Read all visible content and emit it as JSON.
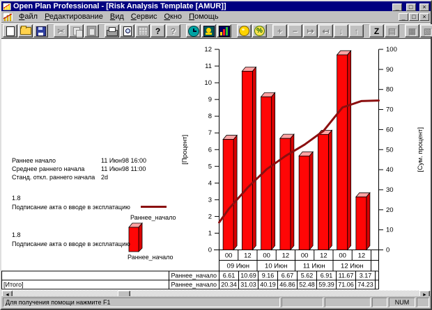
{
  "window": {
    "title": "Open Plan Professional - [Risk Analysis Template [AMUR]]",
    "controls": {
      "minimize": "_",
      "restore": "□",
      "close": "×"
    }
  },
  "menu": {
    "items": [
      "Файл",
      "Редактирование",
      "Вид",
      "Сервис",
      "Окно",
      "Помощь"
    ]
  },
  "toolbar": {
    "buttons": [
      {
        "name": "new-document",
        "group": 0,
        "icon": "page",
        "glyph": "",
        "enabled": true
      },
      {
        "name": "open-document",
        "group": 0,
        "icon": "folder",
        "glyph": "",
        "enabled": true
      },
      {
        "name": "save-document",
        "group": 0,
        "icon": "floppy",
        "glyph": "",
        "enabled": true
      },
      {
        "name": "cut",
        "group": 1,
        "icon": "",
        "glyph": "✂",
        "enabled": false
      },
      {
        "name": "copy",
        "group": 1,
        "icon": "copy",
        "glyph": "",
        "enabled": false
      },
      {
        "name": "paste",
        "group": 1,
        "icon": "paste",
        "glyph": "",
        "enabled": false
      },
      {
        "name": "print",
        "group": 2,
        "icon": "print",
        "glyph": "",
        "enabled": true
      },
      {
        "name": "print-preview",
        "group": 2,
        "icon": "preview",
        "glyph": "",
        "enabled": true
      },
      {
        "name": "import-update",
        "group": 2,
        "icon": "gridup",
        "glyph": "",
        "enabled": false
      },
      {
        "name": "help",
        "group": 2,
        "icon": "",
        "glyph": "?",
        "enabled": true
      },
      {
        "name": "context-help",
        "group": 2,
        "icon": "",
        "glyph": "?",
        "enabled": false
      },
      {
        "name": "time-analysis",
        "group": 3,
        "icon": "clock",
        "glyph": "",
        "enabled": true
      },
      {
        "name": "resource-analysis",
        "group": 3,
        "icon": "bird",
        "glyph": "",
        "enabled": true
      },
      {
        "name": "risk-analysis",
        "group": 3,
        "icon": "chart",
        "glyph": "",
        "enabled": true
      },
      {
        "name": "cost-analysis",
        "group": 4,
        "icon": "coin",
        "glyph": "",
        "enabled": true
      },
      {
        "name": "percent-complete",
        "group": 4,
        "icon": "pct",
        "glyph": "%",
        "enabled": true
      },
      {
        "name": "add-activity",
        "group": 5,
        "icon": "",
        "glyph": "+",
        "enabled": false
      },
      {
        "name": "delete-activity",
        "group": 5,
        "icon": "",
        "glyph": "−",
        "enabled": false
      },
      {
        "name": "link-activities",
        "group": 5,
        "icon": "",
        "glyph": "↦",
        "enabled": false
      },
      {
        "name": "unlink-activities",
        "group": 5,
        "icon": "",
        "glyph": "↤",
        "enabled": false
      },
      {
        "name": "move-down",
        "group": 5,
        "icon": "",
        "glyph": "↓",
        "enabled": false
      },
      {
        "name": "move-up",
        "group": 5,
        "icon": "",
        "glyph": "↑",
        "enabled": false
      },
      {
        "name": "sort",
        "group": 6,
        "icon": "",
        "glyph": "Z",
        "enabled": true
      },
      {
        "name": "notes",
        "group": 6,
        "icon": "",
        "glyph": "▤",
        "enabled": false
      },
      {
        "name": "tile-windows",
        "group": 7,
        "icon": "",
        "glyph": "▦",
        "enabled": false
      },
      {
        "name": "cascade-windows",
        "group": 7,
        "icon": "",
        "glyph": "▧",
        "enabled": false
      }
    ]
  },
  "stats": [
    {
      "label": "Раннее начало",
      "value": "11 Июн98 16:00"
    },
    {
      "label": "Среднее раннего начала",
      "value": "11 Июн98 11:00"
    },
    {
      "label": "Станд. откл.  раннего начала",
      "value": "2d"
    }
  ],
  "legend": {
    "line": {
      "value": "1.8",
      "caption": "Подписание акта о вводе в эксплатацию",
      "series": "Раннее_начало"
    },
    "bar": {
      "value": "1.8",
      "caption": "Подписание акта о вводе в эксплатацию",
      "series": "Раннее_начало"
    }
  },
  "chart_data": {
    "type": "bar+line",
    "x_hours": [
      "00",
      "12",
      "00",
      "12",
      "00",
      "12",
      "00",
      "12"
    ],
    "dates": [
      "09 Июн",
      "10 Июн",
      "11 Июн",
      "12 Июн"
    ],
    "bar_series": {
      "name": "Раннее_начало",
      "values": [
        6.61,
        10.69,
        9.16,
        6.67,
        5.62,
        6.91,
        11.67,
        3.17
      ],
      "color": "#ff0606",
      "top_color": "#ffa3a3",
      "side_color": "#d80202"
    },
    "line_series": {
      "name": "Раннее_начало",
      "values": [
        20.34,
        31.03,
        40.19,
        46.86,
        52.48,
        59.39,
        71.06,
        74.23
      ],
      "edge_start": 13.7,
      "edge_end": 74.5,
      "color": "#8b0f0f"
    },
    "left_axis": {
      "label": "[Процент]",
      "min": 0,
      "max": 12,
      "step": 1
    },
    "right_axis": {
      "label": "[Сум. процент]",
      "min": 0,
      "max": 100,
      "step": 10
    },
    "grid": false,
    "legend_position": "left"
  },
  "table": {
    "rows": [
      {
        "group": "",
        "series": "Раннее_начало",
        "values": [
          "6.61",
          "10.69",
          "9.16",
          "6.67",
          "5.62",
          "6.91",
          "11.67",
          "3.17"
        ]
      },
      {
        "group": "[Итого]",
        "series": "Раннее_начало",
        "values": [
          "20.34",
          "31.03",
          "40.19",
          "46.86",
          "52.48",
          "59.39",
          "71.06",
          "74.23"
        ]
      }
    ]
  },
  "statusbar": {
    "help": "Для получения помощи нажмите F1",
    "num": "NUM"
  }
}
